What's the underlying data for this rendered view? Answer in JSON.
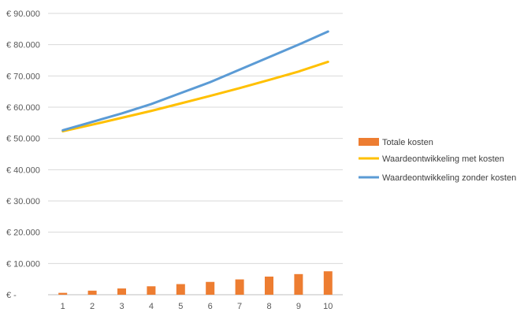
{
  "chart_data": {
    "type": "bar+line",
    "categories": [
      "1",
      "2",
      "3",
      "4",
      "5",
      "6",
      "7",
      "8",
      "9",
      "10"
    ],
    "y_tick_labels": [
      "€ -",
      "€ 10.000",
      "€ 20.000",
      "€ 30.000",
      "€ 40.000",
      "€ 50.000",
      "€ 60.000",
      "€ 70.000",
      "€ 80.000",
      "€ 90.000"
    ],
    "ylim": [
      0,
      90000
    ],
    "grid": true,
    "legend_position": "right",
    "series": [
      {
        "name": "Totale kosten",
        "kind": "bar",
        "color": "#ED7D31",
        "values": [
          600,
          1300,
          2000,
          2700,
          3400,
          4100,
          4900,
          5800,
          6600,
          7500
        ]
      },
      {
        "name": "Waardeontwikkeling met kosten",
        "kind": "line",
        "color": "#FFC000",
        "values": [
          52300,
          54400,
          56600,
          58800,
          61200,
          63600,
          66100,
          68700,
          71400,
          74500
        ]
      },
      {
        "name": "Waardeontwikkeling zonder kosten",
        "kind": "line",
        "color": "#5B9BD5",
        "values": [
          52600,
          55300,
          58000,
          61000,
          64500,
          68000,
          72000,
          76000,
          80000,
          84200
        ]
      }
    ]
  }
}
